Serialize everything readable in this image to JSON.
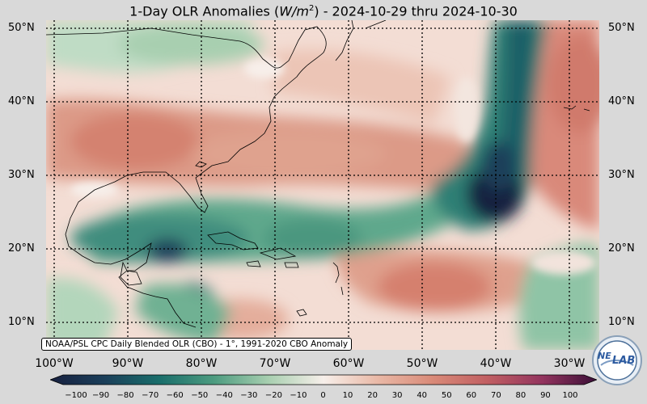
{
  "title": {
    "prefix": "1-Day OLR Anomalies (",
    "unit_base": "W/m",
    "unit_exp": "2",
    "suffix": ") - 2024-10-29 thru 2024-10-30"
  },
  "latitude_labels": [
    "50°N",
    "40°N",
    "30°N",
    "20°N",
    "10°N"
  ],
  "longitude_labels": [
    "100°W",
    "90°W",
    "80°W",
    "70°W",
    "60°W",
    "50°W",
    "40°W",
    "30°W"
  ],
  "credit": "NOAA/PSL CPC Daily Blended OLR (CBO) - 1°, 1991-2020 CBO Anomaly",
  "colorbar": {
    "ticks": [
      "−100",
      "−90",
      "−80",
      "−70",
      "−60",
      "−50",
      "−40",
      "−30",
      "−20",
      "−10",
      "0",
      "10",
      "20",
      "30",
      "40",
      "50",
      "60",
      "70",
      "80",
      "90",
      "100"
    ],
    "colors": {
      "n100": "#17203f",
      "n80": "#1b3f5a",
      "n60": "#1a6e6b",
      "n40": "#4d9c80",
      "n20": "#a8cfb0",
      "zero": "#f7efea",
      "p20": "#e9b8a6",
      "p40": "#d98a78",
      "p60": "#c15f62",
      "p80": "#93345e",
      "p100": "#3b0f37"
    }
  },
  "map": {
    "land_border_color": "#000000",
    "grid_style": "dotted"
  },
  "logo": {
    "text_left": "NE",
    "text_right": "LAB"
  }
}
